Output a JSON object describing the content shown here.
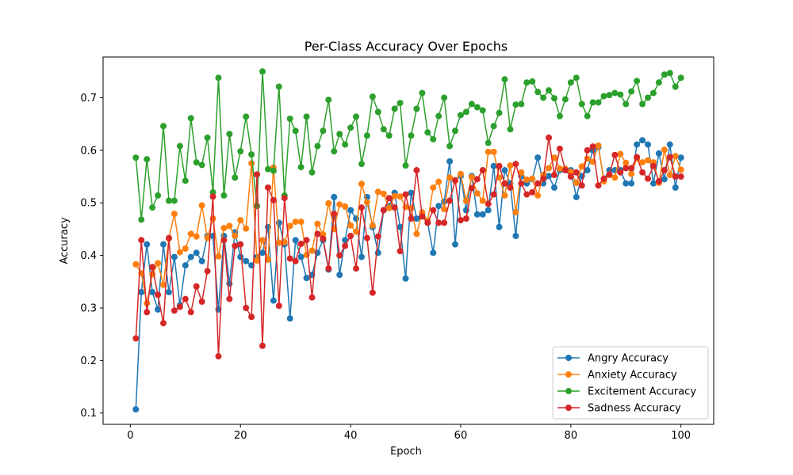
{
  "chart_data": {
    "type": "line",
    "title": "Per-Class Accuracy Over Epochs",
    "xlabel": "Epoch",
    "ylabel": "Accuracy",
    "xlim": [
      -4.95,
      105.95
    ],
    "ylim": [
      0.0785,
      0.7775
    ],
    "xticks": [
      0,
      20,
      40,
      60,
      80,
      100
    ],
    "yticks": [
      0.1,
      0.2,
      0.3,
      0.4,
      0.5,
      0.6,
      0.7
    ],
    "ytick_labels": [
      "0.1",
      "0.2",
      "0.3",
      "0.4",
      "0.5",
      "0.6",
      "0.7"
    ],
    "grid": false,
    "legend_position": "lower right",
    "x": [
      1,
      2,
      3,
      4,
      5,
      6,
      7,
      8,
      9,
      10,
      11,
      12,
      13,
      14,
      15,
      16,
      17,
      18,
      19,
      20,
      21,
      22,
      23,
      24,
      25,
      26,
      27,
      28,
      29,
      30,
      31,
      32,
      33,
      34,
      35,
      36,
      37,
      38,
      39,
      40,
      41,
      42,
      43,
      44,
      45,
      46,
      47,
      48,
      49,
      50,
      51,
      52,
      53,
      54,
      55,
      56,
      57,
      58,
      59,
      60,
      61,
      62,
      63,
      64,
      65,
      66,
      67,
      68,
      69,
      70,
      71,
      72,
      73,
      74,
      75,
      76,
      77,
      78,
      79,
      80,
      81,
      82,
      83,
      84,
      85,
      86,
      87,
      88,
      89,
      90,
      91,
      92,
      93,
      94,
      95,
      96,
      97,
      98,
      99,
      100
    ],
    "series": [
      {
        "name": "Angry Accuracy",
        "color": "#1f77b4",
        "values": [
          0.107,
          0.33,
          0.421,
          0.33,
          0.297,
          0.421,
          0.33,
          0.397,
          0.305,
          0.381,
          0.397,
          0.405,
          0.389,
          0.437,
          0.437,
          0.297,
          0.437,
          0.346,
          0.444,
          0.397,
          0.389,
          0.381,
          0.397,
          0.405,
          0.454,
          0.314,
          0.462,
          0.421,
          0.28,
          0.429,
          0.397,
          0.357,
          0.363,
          0.405,
          0.429,
          0.373,
          0.511,
          0.363,
          0.429,
          0.486,
          0.47,
          0.397,
          0.511,
          0.454,
          0.405,
          0.486,
          0.494,
          0.519,
          0.454,
          0.356,
          0.519,
          0.47,
          0.478,
          0.462,
          0.405,
          0.494,
          0.502,
          0.579,
          0.421,
          0.551,
          0.486,
          0.551,
          0.478,
          0.478,
          0.486,
          0.57,
          0.454,
          0.562,
          0.537,
          0.437,
          0.551,
          0.537,
          0.545,
          0.586,
          0.537,
          0.551,
          0.529,
          0.562,
          0.562,
          0.562,
          0.511,
          0.551,
          0.562,
          0.6,
          0.606,
          0.545,
          0.562,
          0.562,
          0.562,
          0.537,
          0.537,
          0.611,
          0.619,
          0.611,
          0.537,
          0.594,
          0.545,
          0.611,
          0.529,
          0.586
        ]
      },
      {
        "name": "Anxiety Accuracy",
        "color": "#ff7f0e",
        "values": [
          0.383,
          0.366,
          0.309,
          0.364,
          0.385,
          0.344,
          0.432,
          0.479,
          0.406,
          0.413,
          0.441,
          0.436,
          0.495,
          0.433,
          0.47,
          0.398,
          0.452,
          0.456,
          0.437,
          0.467,
          0.451,
          0.575,
          0.39,
          0.429,
          0.392,
          0.567,
          0.424,
          0.425,
          0.456,
          0.464,
          0.464,
          0.401,
          0.409,
          0.46,
          0.44,
          0.499,
          0.45,
          0.497,
          0.493,
          0.457,
          0.445,
          0.536,
          0.501,
          0.457,
          0.521,
          0.517,
          0.49,
          0.513,
          0.512,
          0.492,
          0.49,
          0.441,
          0.482,
          0.466,
          0.529,
          0.54,
          0.488,
          0.548,
          0.542,
          0.555,
          0.504,
          0.549,
          0.518,
          0.504,
          0.597,
          0.597,
          0.548,
          0.514,
          0.571,
          0.482,
          0.558,
          0.544,
          0.546,
          0.514,
          0.553,
          0.566,
          0.586,
          0.565,
          0.565,
          0.559,
          0.538,
          0.569,
          0.584,
          0.578,
          0.609,
          0.541,
          0.553,
          0.548,
          0.593,
          0.576,
          0.555,
          0.585,
          0.577,
          0.581,
          0.577,
          0.538,
          0.601,
          0.553,
          0.589,
          0.563
        ]
      },
      {
        "name": "Excitement Accuracy",
        "color": "#2ca02c",
        "values": [
          0.586,
          0.468,
          0.583,
          0.491,
          0.514,
          0.646,
          0.504,
          0.504,
          0.608,
          0.542,
          0.661,
          0.577,
          0.572,
          0.624,
          0.52,
          0.738,
          0.514,
          0.631,
          0.548,
          0.598,
          0.664,
          0.592,
          0.494,
          0.75,
          0.564,
          0.561,
          0.721,
          0.514,
          0.66,
          0.637,
          0.568,
          0.664,
          0.558,
          0.608,
          0.637,
          0.696,
          0.598,
          0.631,
          0.611,
          0.643,
          0.664,
          0.574,
          0.628,
          0.702,
          0.673,
          0.64,
          0.628,
          0.679,
          0.69,
          0.571,
          0.628,
          0.679,
          0.709,
          0.634,
          0.621,
          0.665,
          0.7,
          0.608,
          0.637,
          0.667,
          0.673,
          0.688,
          0.682,
          0.676,
          0.614,
          0.646,
          0.671,
          0.735,
          0.64,
          0.687,
          0.688,
          0.729,
          0.731,
          0.711,
          0.7,
          0.714,
          0.699,
          0.665,
          0.697,
          0.729,
          0.738,
          0.688,
          0.665,
          0.691,
          0.691,
          0.703,
          0.705,
          0.709,
          0.706,
          0.688,
          0.712,
          0.732,
          0.688,
          0.7,
          0.709,
          0.729,
          0.744,
          0.747,
          0.721,
          0.738
        ]
      },
      {
        "name": "Sadness Accuracy",
        "color": "#d62728",
        "values": [
          0.242,
          0.429,
          0.292,
          0.378,
          0.325,
          0.271,
          0.433,
          0.295,
          0.302,
          0.317,
          0.292,
          0.341,
          0.312,
          0.37,
          0.512,
          0.208,
          0.429,
          0.317,
          0.418,
          0.421,
          0.3,
          0.283,
          0.554,
          0.228,
          0.529,
          0.505,
          0.304,
          0.509,
          0.394,
          0.389,
          0.422,
          0.429,
          0.32,
          0.441,
          0.432,
          0.375,
          0.479,
          0.4,
          0.418,
          0.437,
          0.375,
          0.491,
          0.433,
          0.329,
          0.436,
          0.486,
          0.509,
          0.491,
          0.408,
          0.516,
          0.47,
          0.562,
          0.474,
          0.462,
          0.486,
          0.462,
          0.462,
          0.504,
          0.543,
          0.467,
          0.47,
          0.528,
          0.545,
          0.562,
          0.498,
          0.516,
          0.57,
          0.537,
          0.529,
          0.574,
          0.537,
          0.516,
          0.52,
          0.537,
          0.546,
          0.624,
          0.553,
          0.603,
          0.562,
          0.55,
          0.558,
          0.533,
          0.6,
          0.607,
          0.533,
          0.546,
          0.554,
          0.591,
          0.558,
          0.566,
          0.566,
          0.587,
          0.558,
          0.546,
          0.57,
          0.541,
          0.562,
          0.587,
          0.55,
          0.55
        ]
      }
    ]
  }
}
